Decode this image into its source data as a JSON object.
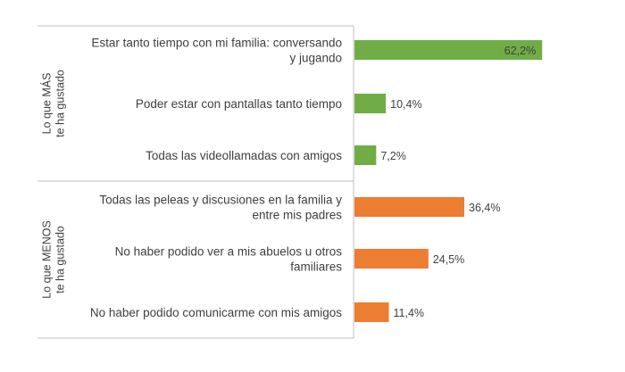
{
  "chart_data": {
    "type": "bar",
    "orientation": "horizontal",
    "groups": [
      {
        "label_lines": [
          "Lo que MÁS",
          "te ha gustado"
        ],
        "color": "#70ad47",
        "items": [
          {
            "label_lines": [
              "Estar tanto tiempo con mi familia: conversando",
              "y jugando"
            ],
            "value": 62.2,
            "value_label": "62,2%"
          },
          {
            "label_lines": [
              "Poder estar con pantallas tanto tiempo"
            ],
            "value": 10.4,
            "value_label": "10,4%"
          },
          {
            "label_lines": [
              "Todas las videollamadas con amigos"
            ],
            "value": 7.2,
            "value_label": "7,2%"
          }
        ]
      },
      {
        "label_lines": [
          "Lo que MENOS",
          "te ha gustado"
        ],
        "color": "#ed7d31",
        "items": [
          {
            "label_lines": [
              "Todas las peleas y discusiones en la familia y",
              "entre mis padres"
            ],
            "value": 36.4,
            "value_label": "36,4%"
          },
          {
            "label_lines": [
              "No haber podido ver a mis abuelos u otros",
              "familiares"
            ],
            "value": 24.5,
            "value_label": "24,5%"
          },
          {
            "label_lines": [
              "No haber podido comunicarme con mis amigos"
            ],
            "value": 11.4,
            "value_label": "11,4%"
          }
        ]
      }
    ],
    "xlim": [
      0,
      100
    ],
    "grid": false,
    "legend": "none",
    "value_label_inside_for_largest": true
  }
}
